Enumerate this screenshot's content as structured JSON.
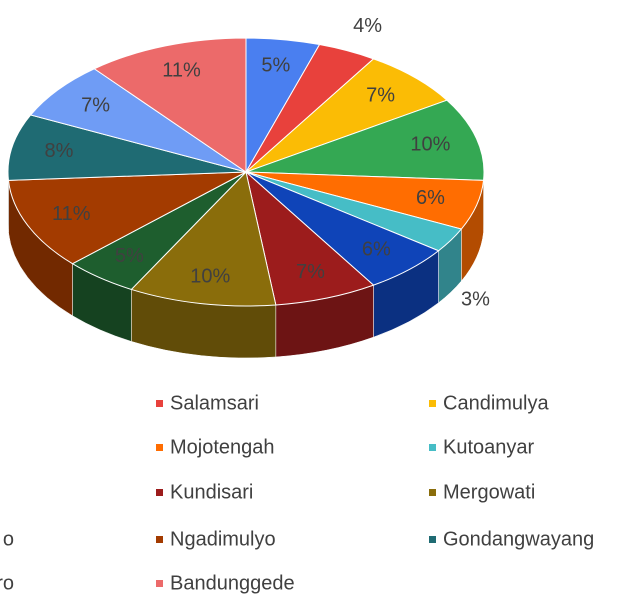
{
  "chart_data": {
    "type": "pie3d",
    "categories": [
      null,
      "Salamsari",
      "Candimulya",
      null,
      "Mojotengah",
      "Kutoanyar",
      null,
      "Kundisari",
      "Mergowati",
      "o",
      "Ngadimulyo",
      "Gondangwayang",
      "ro",
      "Bandunggede"
    ],
    "values": [
      5,
      4,
      7,
      10,
      6,
      3,
      6,
      7,
      10,
      5,
      11,
      8,
      7,
      11
    ],
    "value_labels": [
      "5%",
      "4%",
      "7%",
      "10%",
      "6%",
      "3%",
      "6%",
      "7%",
      "10%",
      "5%",
      "11%",
      "8%",
      "7%",
      "11%"
    ],
    "colors": [
      "#4a7ff0",
      "#e8413c",
      "#fbbc05",
      "#34a853",
      "#ff6d01",
      "#46bdc6",
      "#0f44b8",
      "#9c1c1c",
      "#8a6d0b",
      "#1e5e2e",
      "#a33b00",
      "#1f6b73",
      "#6f9cf5",
      "#ec6a6a"
    ]
  }
}
